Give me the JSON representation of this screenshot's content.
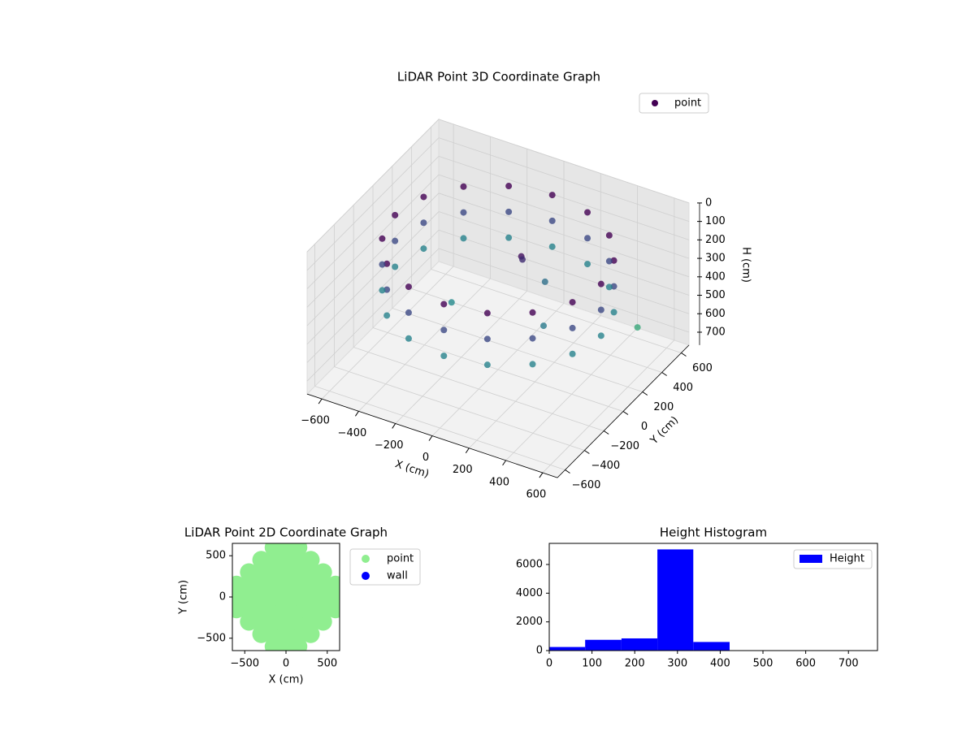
{
  "chart_data": [
    {
      "type": "scatter3d",
      "title": "LiDAR Point 3D Coordinate Graph",
      "xlabel": "X (cm)",
      "ylabel": "Y (cm)",
      "zlabel": "H (cm)",
      "series": [
        {
          "name": "point",
          "color": "#440154",
          "colormap": "viridis",
          "x": [
            560,
            517,
            396,
            214,
            0,
            -214,
            -396,
            -517,
            -560,
            -517,
            -396,
            -214,
            0,
            214,
            396,
            517,
            560,
            517,
            396,
            214,
            0,
            -214,
            -396,
            -517,
            -560,
            -517,
            -396,
            -214,
            0,
            214,
            396,
            517,
            560,
            517,
            396,
            214,
            0,
            -214,
            -396,
            -517,
            -560,
            -517,
            -396,
            -214,
            0,
            214,
            396,
            517,
            100,
            80,
            -200,
            300,
            150,
            600
          ],
          "y": [
            0,
            214,
            396,
            517,
            560,
            517,
            396,
            214,
            0,
            -214,
            -396,
            -517,
            -560,
            -517,
            -396,
            -214,
            0,
            214,
            396,
            517,
            560,
            517,
            396,
            214,
            0,
            -214,
            -396,
            -517,
            -560,
            -517,
            -396,
            -214,
            0,
            214,
            396,
            517,
            560,
            517,
            396,
            214,
            0,
            -214,
            -396,
            -517,
            -560,
            -517,
            -396,
            -214,
            50,
            100,
            -100,
            -100,
            200,
            300
          ],
          "z": [
            120,
            120,
            120,
            120,
            120,
            120,
            120,
            120,
            120,
            120,
            120,
            120,
            120,
            120,
            120,
            120,
            260,
            260,
            260,
            260,
            260,
            260,
            260,
            260,
            260,
            260,
            260,
            260,
            260,
            260,
            260,
            260,
            400,
            400,
            400,
            400,
            400,
            400,
            400,
            400,
            400,
            400,
            400,
            400,
            400,
            400,
            400,
            400,
            150,
            200,
            420,
            380,
            350,
            500
          ]
        }
      ],
      "xlim": [
        -680,
        680
      ],
      "ylim": [
        -680,
        680
      ],
      "zlim": [
        0,
        770
      ],
      "zinverted": true,
      "xticks": [
        {
          "value": -600,
          "label": "−600"
        },
        {
          "value": -400,
          "label": "−400"
        },
        {
          "value": -200,
          "label": "−200"
        },
        0,
        200,
        400,
        600
      ],
      "yticks": [
        {
          "value": -600,
          "label": "−600"
        },
        {
          "value": -400,
          "label": "−400"
        },
        {
          "value": -200,
          "label": "−200"
        },
        0,
        200,
        400,
        600
      ],
      "zticks": [
        0,
        100,
        200,
        300,
        400,
        500,
        600,
        700
      ],
      "grid": true,
      "legend": "upper right"
    },
    {
      "type": "scatter",
      "title": "LiDAR Point 2D Coordinate Graph",
      "xlabel": "X (cm)",
      "ylabel": "Y (cm)",
      "series": [
        {
          "name": "point",
          "color": "#90ee90",
          "x": [
            -600,
            -600,
            -600,
            -450,
            -450,
            -450,
            -450,
            -450,
            -300,
            -300,
            -300,
            -300,
            -300,
            -300,
            -300,
            -150,
            -150,
            -150,
            -150,
            -150,
            -150,
            -150,
            -150,
            -150,
            0,
            0,
            0,
            0,
            0,
            0,
            0,
            0,
            0,
            150,
            150,
            150,
            150,
            150,
            150,
            150,
            150,
            150,
            300,
            300,
            300,
            300,
            300,
            300,
            300,
            450,
            450,
            450,
            450,
            450,
            600,
            600,
            600
          ],
          "y": [
            -150,
            0,
            150,
            -300,
            -150,
            0,
            150,
            300,
            -450,
            -300,
            -150,
            0,
            150,
            300,
            450,
            -600,
            -450,
            -300,
            -150,
            0,
            150,
            300,
            450,
            600,
            -600,
            -450,
            -300,
            -150,
            0,
            150,
            300,
            450,
            600,
            -600,
            -450,
            -300,
            -150,
            0,
            150,
            300,
            450,
            600,
            -450,
            -300,
            -150,
            0,
            150,
            300,
            450,
            -300,
            -150,
            0,
            150,
            300,
            -150,
            0,
            150
          ]
        },
        {
          "name": "wall",
          "color": "#0000ff",
          "x": [],
          "y": []
        }
      ],
      "xlim": [
        -650,
        650
      ],
      "ylim": [
        -650,
        650
      ],
      "xticks": [
        {
          "value": -500,
          "label": "−500"
        },
        0,
        500
      ],
      "yticks": [
        {
          "value": -500,
          "label": "−500"
        },
        0,
        500
      ],
      "legend": "outside right"
    },
    {
      "type": "histogram",
      "title": "Height Histogram",
      "bins": [
        0,
        84,
        169,
        253,
        337,
        422,
        506,
        590,
        675,
        759
      ],
      "series": [
        {
          "name": "Height",
          "color": "#0000ff",
          "values": [
            250,
            750,
            850,
            7050,
            600,
            0,
            0,
            0,
            5
          ]
        }
      ],
      "xlim": [
        0,
        768
      ],
      "ylim": [
        0,
        7470
      ],
      "xticks": [
        0,
        100,
        200,
        300,
        400,
        500,
        600,
        700
      ],
      "yticks": [
        0,
        2000,
        4000,
        6000
      ],
      "legend": "upper right"
    }
  ]
}
